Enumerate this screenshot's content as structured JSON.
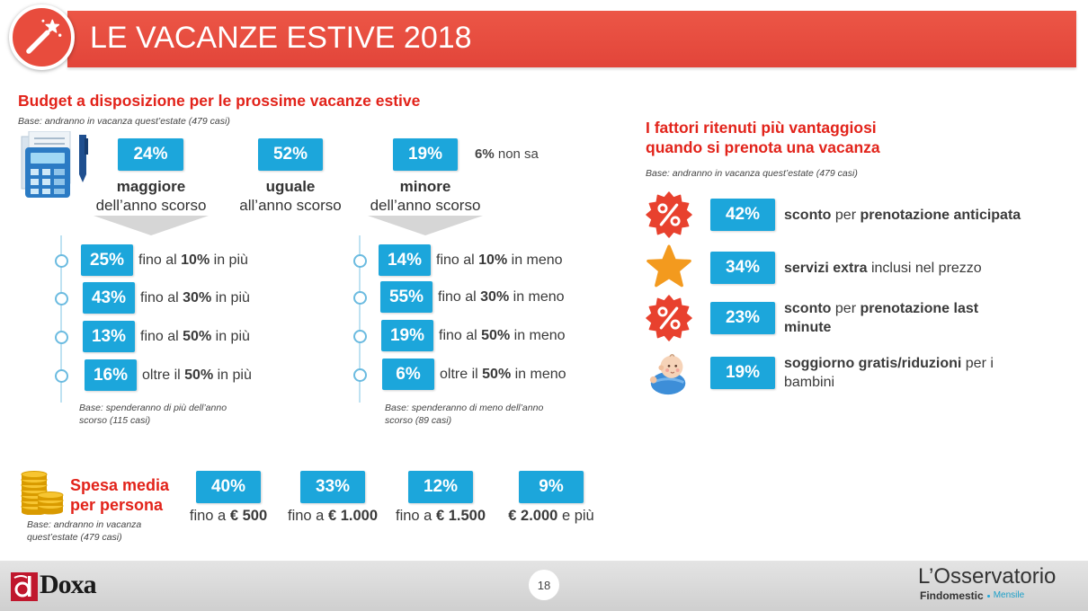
{
  "header": {
    "title": "LE VACANZE ESTIVE 2018",
    "icon": "magic-wand-icon"
  },
  "colors": {
    "banner_red": "#e84c3d",
    "title_red": "#e2231a",
    "box_blue": "#1ca6db",
    "text_dark": "#3a3a3a"
  },
  "budget": {
    "title": "Budget a disposizione per le prossime vacanze estive",
    "base": "Base: andranno in vacanza quest’estate (479 casi)",
    "icon": "calculator-icon",
    "options": [
      {
        "value": "24%",
        "label": "maggiore",
        "sublabel": "dell’anno scorso"
      },
      {
        "value": "52%",
        "label": "uguale",
        "sublabel": "all’anno scorso"
      },
      {
        "value": "19%",
        "label": "minore",
        "sublabel": "dell’anno scorso"
      }
    ],
    "dont_know": {
      "value": "6%",
      "label": "non sa"
    },
    "more": {
      "rows": [
        {
          "value": "25%",
          "pre": "fino al",
          "bold": "10%",
          "post": "in più"
        },
        {
          "value": "43%",
          "pre": "fino al",
          "bold": "30%",
          "post": "in più"
        },
        {
          "value": "13%",
          "pre": "fino al",
          "bold": "50%",
          "post": "in più"
        },
        {
          "value": "16%",
          "pre": "oltre il",
          "bold": "50%",
          "post": "in più"
        }
      ],
      "base": "Base: spenderanno di più dell’anno scorso (115 casi)"
    },
    "less": {
      "rows": [
        {
          "value": "14%",
          "pre": "fino al",
          "bold": "10%",
          "post": "in meno"
        },
        {
          "value": "55%",
          "pre": "fino al",
          "bold": "30%",
          "post": "in meno"
        },
        {
          "value": "19%",
          "pre": "fino al",
          "bold": "50%",
          "post": "in meno"
        },
        {
          "value": "6%",
          "pre": "oltre il",
          "bold": "50%",
          "post": "in meno"
        }
      ],
      "base": "Base: spenderanno di meno dell’anno scorso (89 casi)"
    }
  },
  "factors": {
    "title_line1": "I fattori ritenuti più vantaggiosi",
    "title_line2": "quando si prenota una vacanza",
    "base": "Base: andranno in vacanza quest’estate (479 casi)",
    "rows": [
      {
        "icon": "percent-badge-icon",
        "value": "42%",
        "b1": "sconto",
        "n1": "per",
        "b2": "prenotazione anticipata"
      },
      {
        "icon": "star-icon",
        "value": "34%",
        "b1": "servizi extra",
        "n1": "inclusi nel prezzo",
        "b2": ""
      },
      {
        "icon": "percent-badge-icon",
        "value": "23%",
        "b1": "sconto",
        "n1": "per",
        "b2": "prenotazione last minute"
      },
      {
        "icon": "baby-icon",
        "value": "19%",
        "b1": "soggiorno gratis/riduzioni",
        "n1": "per i bambini",
        "b2": ""
      }
    ]
  },
  "spending": {
    "title_line1": "Spesa media",
    "title_line2": "per persona",
    "base": "Base: andranno in vacanza quest’estate (479 casi)",
    "icon": "coins-icon",
    "items": [
      {
        "value": "40%",
        "n1": "fino a",
        "b1": "€ 500",
        "n2": ""
      },
      {
        "value": "33%",
        "n1": "fino a",
        "b1": "€ 1.000",
        "n2": ""
      },
      {
        "value": "12%",
        "n1": "fino a",
        "b1": "€ 1.500",
        "n2": ""
      },
      {
        "value": "9%",
        "n1": "",
        "b1": "€ 2.000",
        "n2": "e più"
      }
    ]
  },
  "footer": {
    "logo_left": "Doxa",
    "page_number": "18",
    "logo_right_title": "L’Osservatorio",
    "logo_right_brand": "Findomestic",
    "logo_right_sub": "Mensile"
  }
}
